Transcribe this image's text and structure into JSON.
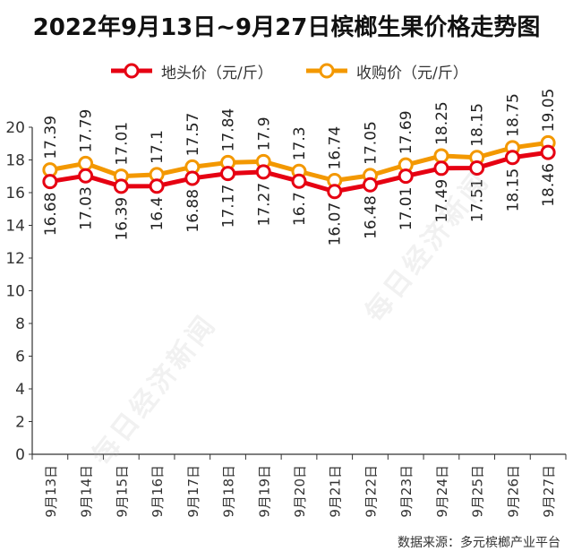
{
  "chart_data": {
    "type": "line",
    "title": "2022年9月13日~9月27日槟榔生果价格走势图",
    "categories": [
      "9月13日",
      "9月14日",
      "9月15日",
      "9月16日",
      "9月17日",
      "9月18日",
      "9月19日",
      "9月20日",
      "9月21日",
      "9月22日",
      "9月23日",
      "9月24日",
      "9月25日",
      "9月26日",
      "9月27日"
    ],
    "series": [
      {
        "name": "地头价（元/斤）",
        "color": "#e60012",
        "values": [
          16.68,
          17.03,
          16.39,
          16.4,
          16.88,
          17.17,
          17.27,
          16.7,
          16.07,
          16.48,
          17.01,
          17.49,
          17.51,
          18.15,
          18.46
        ],
        "labels": [
          "16.68",
          "17.03",
          "16.39",
          "16.4",
          "16.88",
          "17.17",
          "17.27",
          "16.7",
          "16.07",
          "16.48",
          "17.01",
          "17.49",
          "17.51",
          "18.15",
          "18.46"
        ]
      },
      {
        "name": "收购价（元/斤）",
        "color": "#f39800",
        "values": [
          17.39,
          17.79,
          17.01,
          17.1,
          17.57,
          17.84,
          17.9,
          17.3,
          16.74,
          17.05,
          17.69,
          18.25,
          18.15,
          18.75,
          19.05
        ],
        "labels": [
          "17.39",
          "17.79",
          "17.01",
          "17.1",
          "17.57",
          "17.84",
          "17.9",
          "17.3",
          "16.74",
          "17.05",
          "17.69",
          "18.25",
          "18.15",
          "18.75",
          "19.05"
        ]
      }
    ],
    "ylim": [
      0,
      20
    ],
    "yticks": [
      "0",
      "2",
      "4",
      "6",
      "8",
      "10",
      "12",
      "14",
      "16",
      "18",
      "20"
    ],
    "grid": false,
    "legend_position": "top"
  },
  "source": "数据来源：多元槟榔产业平台",
  "watermark": "每日经济新闻"
}
